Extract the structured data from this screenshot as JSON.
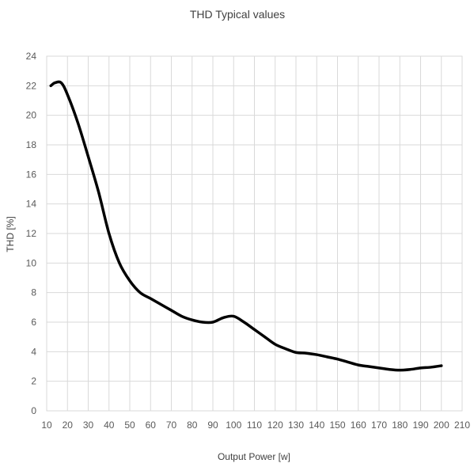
{
  "chart_data": {
    "type": "line",
    "title": "THD Typical values",
    "xlabel": "Output Power [w]",
    "ylabel": "THD [%]",
    "xlim": [
      10,
      210
    ],
    "ylim": [
      0,
      24
    ],
    "x_ticks": [
      10,
      20,
      30,
      40,
      50,
      60,
      70,
      80,
      90,
      100,
      110,
      120,
      130,
      140,
      150,
      160,
      170,
      180,
      190,
      200,
      210
    ],
    "y_ticks": [
      0,
      2,
      4,
      6,
      8,
      10,
      12,
      14,
      16,
      18,
      20,
      22,
      24
    ],
    "grid": true,
    "legend": "none",
    "line_color": "#000000",
    "series": [
      {
        "x": [
          12,
          14,
          17,
          20,
          25,
          30,
          35,
          40,
          45,
          50,
          55,
          60,
          65,
          70,
          75,
          80,
          85,
          90,
          95,
          100,
          105,
          110,
          115,
          120,
          125,
          130,
          135,
          140,
          145,
          150,
          155,
          160,
          165,
          170,
          175,
          180,
          185,
          190,
          195,
          200
        ],
        "y": [
          22.0,
          22.2,
          22.2,
          21.4,
          19.5,
          17.2,
          14.8,
          12.0,
          10.0,
          8.8,
          8.0,
          7.6,
          7.2,
          6.8,
          6.4,
          6.15,
          6.0,
          6.0,
          6.3,
          6.4,
          6.0,
          5.5,
          5.0,
          4.5,
          4.2,
          3.95,
          3.9,
          3.8,
          3.65,
          3.5,
          3.3,
          3.1,
          3.0,
          2.9,
          2.8,
          2.75,
          2.8,
          2.9,
          2.95,
          3.05
        ]
      }
    ]
  }
}
